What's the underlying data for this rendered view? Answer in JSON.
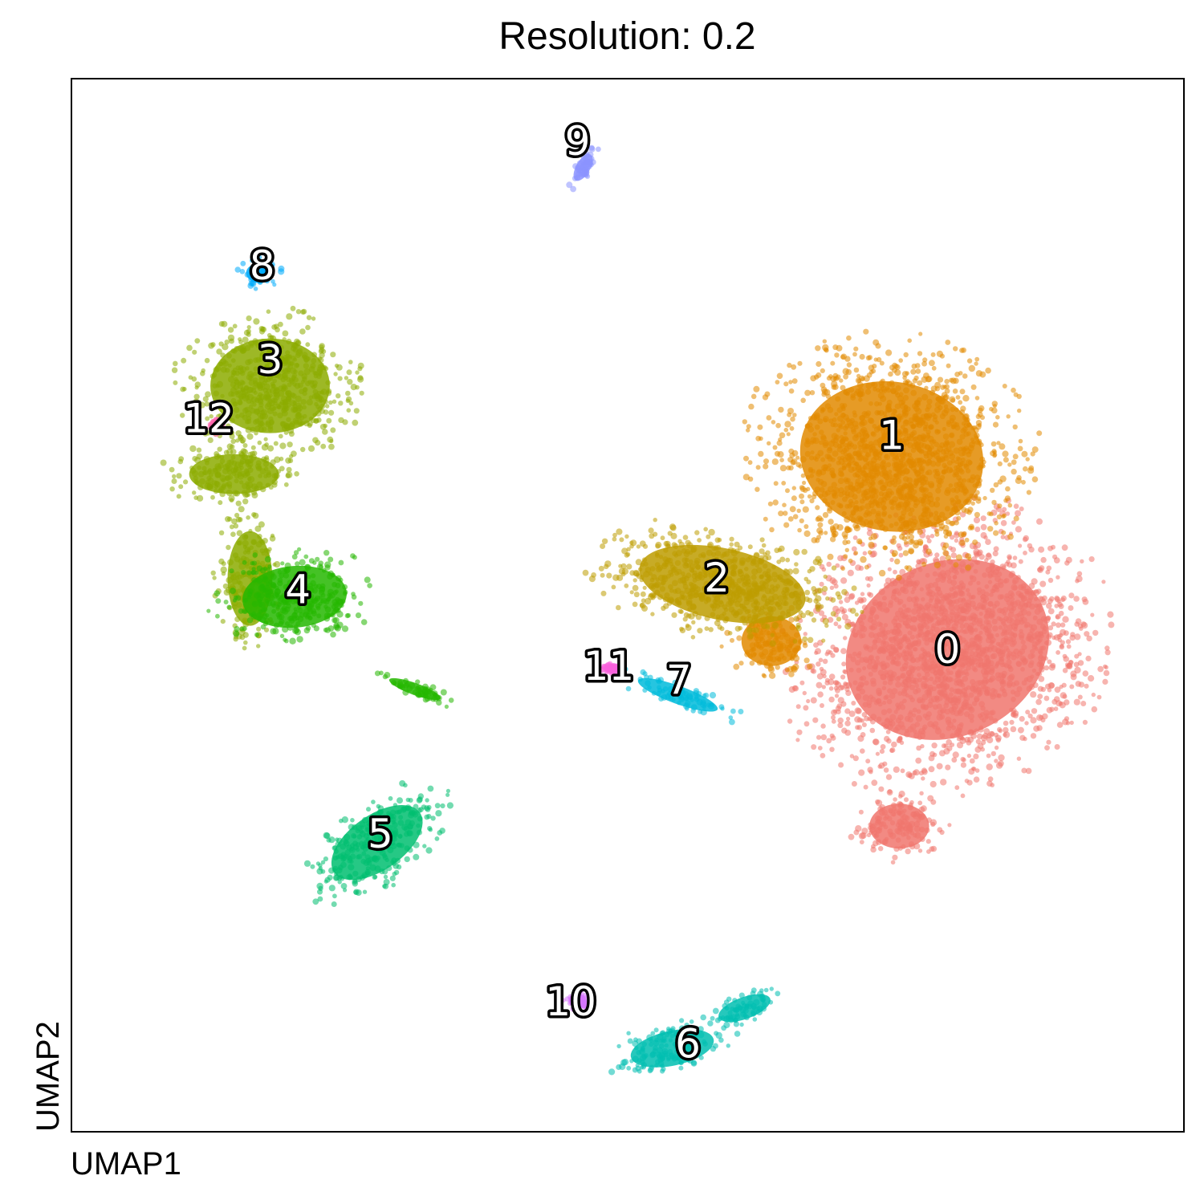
{
  "chart_data": {
    "type": "scatter",
    "title": "Resolution: 0.2",
    "xlabel": "UMAP1",
    "ylabel": "UMAP2",
    "xlim": [
      0,
      100
    ],
    "ylim": [
      0,
      100
    ],
    "grid": false,
    "legend": "on-data",
    "series": [
      {
        "name": "0",
        "color": "#F0766D",
        "center": [
          78.7,
          45.8
        ],
        "shape": "blob"
      },
      {
        "name": "1",
        "color": "#E28A00",
        "center": [
          73.7,
          64.1
        ],
        "shape": "blob"
      },
      {
        "name": "2",
        "color": "#BD9C00",
        "center": [
          58.5,
          52.0
        ],
        "shape": "blob"
      },
      {
        "name": "3",
        "color": "#8CAB00",
        "center": [
          17.9,
          70.8
        ],
        "shape": "blob"
      },
      {
        "name": "4",
        "color": "#24B700",
        "center": [
          20.1,
          50.8
        ],
        "shape": "blob"
      },
      {
        "name": "5",
        "color": "#00BE70",
        "center": [
          27.5,
          27.5
        ],
        "shape": "blob"
      },
      {
        "name": "6",
        "color": "#00BEB0",
        "center": [
          54.0,
          8.0
        ],
        "shape": "blob"
      },
      {
        "name": "7",
        "color": "#00BBDA",
        "center": [
          54.5,
          41.5
        ],
        "shape": "streak"
      },
      {
        "name": "8",
        "color": "#00ACFC",
        "center": [
          17.0,
          81.5
        ],
        "shape": "blob"
      },
      {
        "name": "9",
        "color": "#8B93FF",
        "center": [
          46.0,
          91.5
        ],
        "shape": "streak"
      },
      {
        "name": "10",
        "color": "#D575FE",
        "center": [
          45.5,
          12.5
        ],
        "shape": "blob"
      },
      {
        "name": "11",
        "color": "#F962DD",
        "center": [
          48.5,
          44.0
        ],
        "shape": "blob"
      },
      {
        "name": "12",
        "color": "#FF65AC",
        "center": [
          13.0,
          67.0
        ],
        "shape": "blob"
      }
    ],
    "labels": [
      {
        "text": "0",
        "x": 78.7,
        "y": 45.8
      },
      {
        "text": "1",
        "x": 73.7,
        "y": 66.1
      },
      {
        "text": "2",
        "x": 58.0,
        "y": 52.6
      },
      {
        "text": "3",
        "x": 17.9,
        "y": 73.3
      },
      {
        "text": "4",
        "x": 20.4,
        "y": 51.5
      },
      {
        "text": "5",
        "x": 27.8,
        "y": 28.3
      },
      {
        "text": "6",
        "x": 55.4,
        "y": 8.4
      },
      {
        "text": "7",
        "x": 54.6,
        "y": 42.9
      },
      {
        "text": "8",
        "x": 17.2,
        "y": 82.2
      },
      {
        "text": "9",
        "x": 45.5,
        "y": 94.0
      },
      {
        "text": "10",
        "x": 44.9,
        "y": 12.4
      },
      {
        "text": "11",
        "x": 48.3,
        "y": 44.2
      },
      {
        "text": "12",
        "x": 12.4,
        "y": 67.7
      }
    ]
  }
}
